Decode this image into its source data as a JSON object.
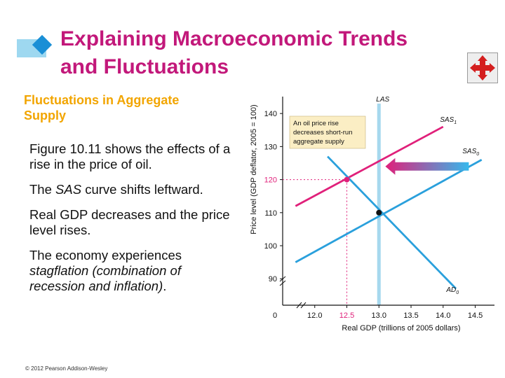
{
  "slide": {
    "title_line1": "Explaining Macroeconomic Trends",
    "title_line2": "and Fluctuations",
    "subtitle_line1": "Fluctuations in Aggregate",
    "subtitle_line2": "Supply",
    "bullet1": "Figure 10.11 shows the effects of a rise in the price of oil.",
    "bullet2_pre": "The ",
    "bullet2_em": "SAS",
    "bullet2_post": " curve shifts leftward.",
    "bullet3": "Real GDP decreases and the price level rises.",
    "bullet4_pre": "The economy experiences ",
    "bullet4_em": "stagflation (combination of recession and inflation)",
    "bullet4_post": ".",
    "copyright": "© 2012 Pearson Addison-Wesley",
    "nav_icon": "four-way-arrows-icon"
  },
  "chart_data": {
    "type": "line",
    "ylabel": "Price level (GDP deflator, 2005 = 100)",
    "xlabel": "Real GDP (trillions of 2005 dollars)",
    "xlim": [
      11.5,
      14.8
    ],
    "ylim": [
      82,
      143
    ],
    "x_ticks": [
      "12.0",
      "12.5",
      "13.0",
      "13.5",
      "14.0",
      "14.5"
    ],
    "y_ticks": [
      "90",
      "100",
      "110",
      "120",
      "130",
      "140"
    ],
    "origin_label": "0",
    "highlight_x_tick": "12.5",
    "highlight_y_tick": "120",
    "series": [
      {
        "name": "SAS",
        "sub": "1",
        "color": "#e0207a",
        "x": [
          11.7,
          14.0
        ],
        "y": [
          112,
          136
        ]
      },
      {
        "name": "SAS",
        "sub": "0",
        "color": "#2aa0dc",
        "x": [
          11.7,
          14.6
        ],
        "y": [
          95,
          126
        ]
      },
      {
        "name": "AD",
        "sub": "0",
        "color": "#2aa0dc",
        "x": [
          12.2,
          14.2
        ],
        "y": [
          127,
          87
        ]
      }
    ],
    "lras": {
      "name": "LAS",
      "x": 13.0,
      "color": "#a6d8ee"
    },
    "points": [
      {
        "x": 12.5,
        "y": 120,
        "color": "#e0207a"
      },
      {
        "x": 13.0,
        "y": 110,
        "color": "#111111"
      }
    ],
    "annotation": [
      "An oil price rise",
      "decreases short-run",
      "aggregate supply"
    ],
    "shift_arrow": {
      "from": [
        14.4,
        124
      ],
      "to": [
        13.1,
        124
      ]
    }
  }
}
